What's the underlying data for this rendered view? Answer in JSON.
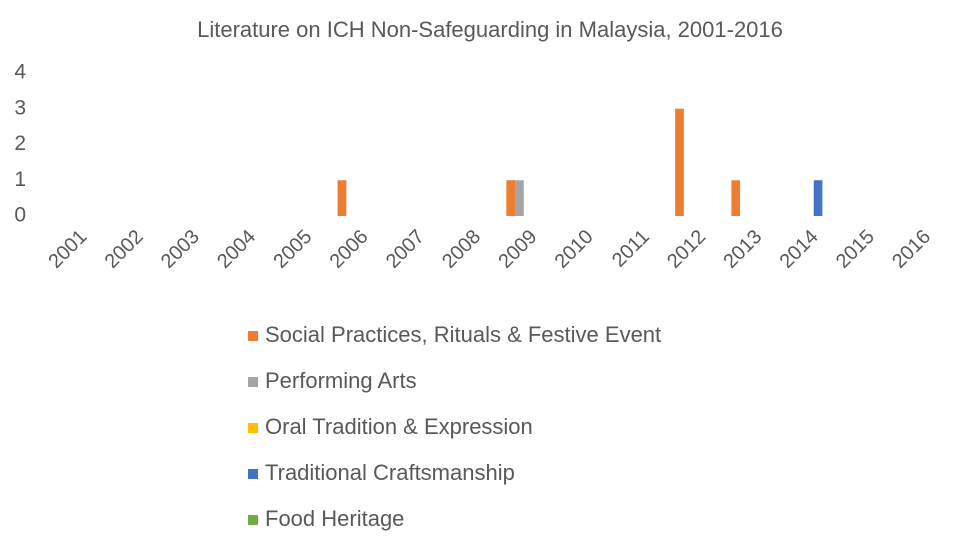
{
  "chart_data": {
    "type": "bar",
    "title": "Literature on ICH Non-Safeguarding in Malaysia, 2001-2016",
    "categories": [
      "2001",
      "2002",
      "2003",
      "2004",
      "2005",
      "2006",
      "2007",
      "2008",
      "2009",
      "2010",
      "2011",
      "2012",
      "2013",
      "2014",
      "2015",
      "2016"
    ],
    "series": [
      {
        "name": "Social Practices, Rituals & Festive Event",
        "color": "#ed7d31",
        "values": [
          0,
          0,
          0,
          0,
          0,
          1,
          0,
          0,
          1,
          0,
          0,
          3,
          1,
          0,
          0,
          0
        ]
      },
      {
        "name": "Performing Arts",
        "color": "#a5a5a5",
        "values": [
          0,
          0,
          0,
          0,
          0,
          0,
          0,
          0,
          1,
          0,
          0,
          0,
          0,
          0,
          0,
          0
        ]
      },
      {
        "name": "Oral Tradition & Expression",
        "color": "#ffc000",
        "values": [
          0,
          0,
          0,
          0,
          0,
          0,
          0,
          0,
          0,
          0,
          0,
          0,
          0,
          0,
          0,
          0
        ]
      },
      {
        "name": "Traditional Craftsmanship",
        "color": "#4472c4",
        "values": [
          0,
          0,
          0,
          0,
          0,
          0,
          0,
          0,
          0,
          0,
          0,
          0,
          0,
          1,
          0,
          0
        ]
      },
      {
        "name": "Food Heritage",
        "color": "#70ad47",
        "values": [
          0,
          0,
          0,
          0,
          0,
          0,
          0,
          0,
          0,
          0,
          0,
          0,
          0,
          0,
          0,
          0
        ]
      }
    ],
    "ylim": [
      0,
      4
    ],
    "yticks": [
      0,
      1,
      2,
      3,
      4
    ],
    "grid": false
  }
}
